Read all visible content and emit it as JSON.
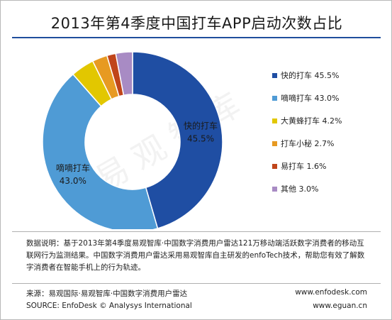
{
  "title": "2013年第4季度中国打车APP启动次数占比",
  "chart_data": {
    "type": "pie",
    "style": "donut",
    "categories": [
      "快的打车",
      "嘀嘀打车",
      "大黄蜂打车",
      "打车小秘",
      "易打车",
      "其他"
    ],
    "values": [
      45.5,
      43.0,
      4.2,
      2.7,
      1.6,
      3.0
    ],
    "value_labels": [
      "45.5%",
      "43.0%",
      "4.2%",
      "2.7%",
      "1.6%",
      "3.0%"
    ],
    "colors": [
      "#1f4ea3",
      "#4f9bd5",
      "#e2c700",
      "#e79a22",
      "#c0451a",
      "#a88bc4"
    ],
    "legend_placement": "right",
    "slice_labels": [
      {
        "name": "快的打车",
        "value": "45.5%"
      },
      {
        "name": "嘀嘀打车",
        "value": "43.0%"
      }
    ]
  },
  "note": "数据说明：基于2013年第4季度易观智库·中国数字消费用户雷达121万移动端活跃数字消费者的移动互联网行为监测结果。中国数字消费用户雷达采用易观智库自主研发的enfoTech技术，帮助您有效了解数字消费者在智能手机上的行为轨迹。",
  "source_cn": "来源：易观国际·易观智库·中国数字消费用户雷达",
  "source_en": "SOURCE: EnfoDesk © Analysys International",
  "url1": "www.enfodesk.com",
  "url2": "www.eguan.cn",
  "watermark": "易观智库"
}
